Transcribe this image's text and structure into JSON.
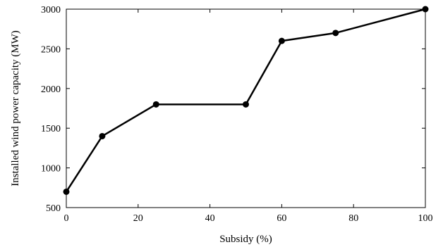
{
  "chart_data": {
    "type": "line",
    "xlabel": "Subsidy (%)",
    "ylabel": "Installed wind power capacity (MW)",
    "xlim": [
      0,
      100
    ],
    "ylim": [
      500,
      3000
    ],
    "xticks": [
      0,
      20,
      40,
      60,
      80,
      100
    ],
    "yticks": [
      500,
      1000,
      1500,
      2000,
      2500,
      3000
    ],
    "grid": false,
    "series": [
      {
        "x": [
          0,
          10,
          25,
          50,
          60,
          75,
          100
        ],
        "y": [
          700,
          1400,
          1800,
          1800,
          2600,
          2700,
          3000
        ]
      }
    ],
    "colors": {
      "line": "#000000",
      "marker": "#000000"
    }
  }
}
